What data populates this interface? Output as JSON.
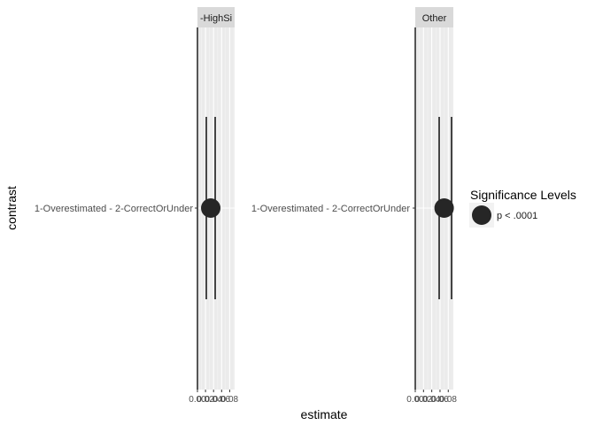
{
  "chart_data": {
    "type": "scatter",
    "xlabel": "estimate",
    "ylabel": "contrast",
    "xlim": [
      0,
      0.0923
    ],
    "x_ticks": [
      0.0,
      0.02,
      0.04,
      0.06,
      0.08
    ],
    "x_tick_labels": [
      "0.00",
      "0.02",
      "0.04",
      "0.06",
      "0.08"
    ],
    "y_categories": [
      "1-Overestimated - 2-CorrectOrUnder"
    ],
    "grid": true,
    "legend": {
      "title": "Significance Levels",
      "placement": "right",
      "items": [
        {
          "label": "p < .0001",
          "color": "#262626"
        }
      ]
    },
    "facets": [
      {
        "label": "-HighSi",
        "points": [
          {
            "contrast": "1-Overestimated - 2-CorrectOrUnder",
            "estimate": 0.033,
            "ci_low": 0.022,
            "ci_high": 0.044,
            "significance": "p < .0001"
          }
        ]
      },
      {
        "label": "Other",
        "points": [
          {
            "contrast": "1-Overestimated - 2-CorrectOrUnder",
            "estimate": 0.07,
            "ci_low": 0.058,
            "ci_high": 0.088,
            "significance": "p < .0001"
          }
        ]
      }
    ]
  },
  "colors": {
    "panel_bg": "#ebebeb",
    "grid_major": "#ffffff",
    "strip_bg": "#d9d9d9",
    "point": "#262626",
    "axis_text": "#4d4d4d",
    "text": "#000000"
  }
}
